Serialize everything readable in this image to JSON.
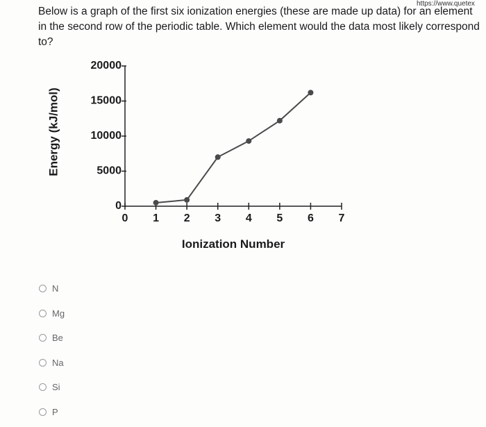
{
  "url": "https://www.quetex",
  "question": "Below is a graph of the first six ionization energies (these are made up data) for an element in the second row of the periodic table. Which element would the data most likely correspond to?",
  "chart_data": {
    "type": "line",
    "y_label": "Energy (kJ/mol)",
    "x_label": "Ionization Number",
    "x": [
      1,
      2,
      3,
      4,
      5,
      6
    ],
    "values": [
      500,
      900,
      7000,
      9300,
      12200,
      16200
    ],
    "color": "#4a4a4a",
    "xlim": [
      0,
      7
    ],
    "xticks": [
      0,
      1,
      2,
      3,
      4,
      5,
      6,
      7
    ],
    "ylim": [
      0,
      20000
    ],
    "yticks": [
      0,
      5000,
      10000,
      15000,
      20000
    ],
    "grid": false
  },
  "options": [
    "N",
    "Mg",
    "Be",
    "Na",
    "Si",
    "P"
  ]
}
